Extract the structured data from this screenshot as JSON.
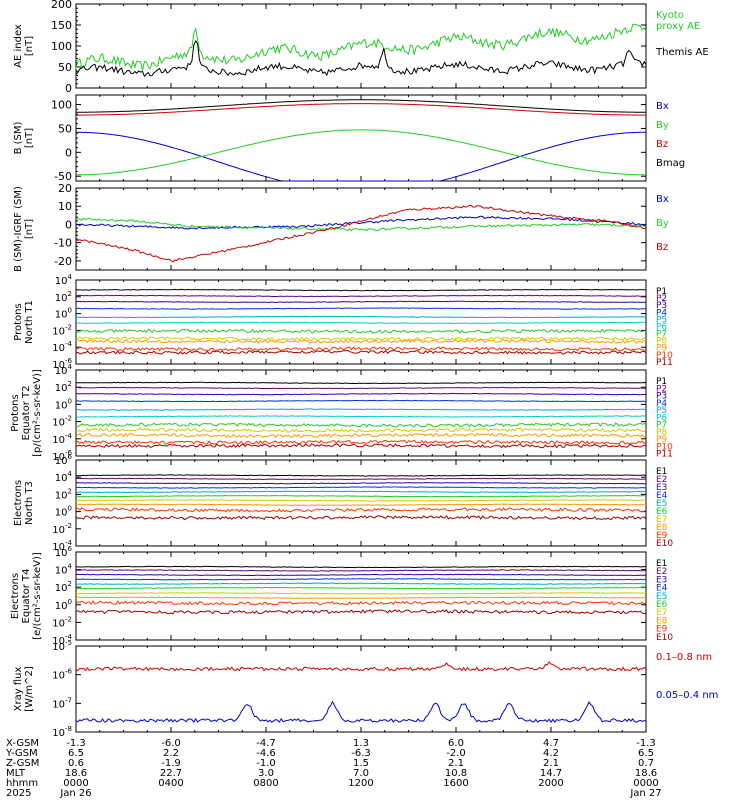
{
  "chart_data": [
    {
      "type": "line",
      "ylabel": [
        "AE index",
        "[nT]"
      ],
      "ylim": [
        0,
        200
      ],
      "yticks": [
        0,
        50,
        100,
        150,
        200
      ],
      "log": false,
      "series": [
        {
          "name": "Kyoto proxy AE",
          "label": [
            "Kyoto",
            "proxy AE"
          ],
          "color": "#22cc22",
          "base": 55,
          "amp": 12,
          "noise": 12,
          "trend": 80,
          "spikes": [
            [
              0.21,
              60
            ]
          ]
        },
        {
          "name": "Themis AE",
          "label": [
            "Themis AE"
          ],
          "color": "#000000",
          "base": 40,
          "amp": 8,
          "noise": 8,
          "trend": 12,
          "spikes": [
            [
              0.21,
              70
            ],
            [
              0.54,
              40
            ],
            [
              0.97,
              30
            ]
          ]
        }
      ]
    },
    {
      "type": "line",
      "ylabel": [
        "B (SM)",
        "[nT]"
      ],
      "ylim": [
        -60,
        120
      ],
      "yticks": [
        -50,
        0,
        50,
        100
      ],
      "log": false,
      "series": [
        {
          "name": "Bx",
          "label": [
            "Bx"
          ],
          "color": "#0000cc",
          "curve": "sin",
          "c0": -20,
          "a": 62,
          "phase": 0.25
        },
        {
          "name": "By",
          "label": [
            "By"
          ],
          "color": "#22cc22",
          "curve": "sin",
          "c0": 0,
          "a": 47,
          "phase": -0.25
        },
        {
          "name": "Bz",
          "label": [
            "Bz"
          ],
          "color": "#cc0000",
          "curve": "sin",
          "c0": 90,
          "a": 12,
          "phase": -0.25
        },
        {
          "name": "Bmag",
          "label": [
            "Bmag"
          ],
          "color": "#000000",
          "curve": "sin",
          "c0": 97,
          "a": 13,
          "phase": -0.25
        }
      ]
    },
    {
      "type": "line",
      "ylabel": [
        "B (SM)-IGRF (SM)",
        "[nT]"
      ],
      "ylim": [
        -25,
        20
      ],
      "yticks": [
        -20,
        -10,
        0,
        10,
        20
      ],
      "log": false,
      "series": [
        {
          "name": "Bx",
          "label": [
            "Bx"
          ],
          "color": "#0000cc",
          "curve": "pts",
          "pts": [
            [
              0,
              0
            ],
            [
              0.2,
              -2
            ],
            [
              0.4,
              -1
            ],
            [
              0.55,
              2
            ],
            [
              0.7,
              4
            ],
            [
              0.85,
              3
            ],
            [
              1,
              0
            ]
          ]
        },
        {
          "name": "By",
          "label": [
            "By"
          ],
          "color": "#22cc22",
          "curve": "pts",
          "pts": [
            [
              0,
              3
            ],
            [
              0.1,
              2
            ],
            [
              0.2,
              -1
            ],
            [
              0.35,
              -2
            ],
            [
              0.5,
              -3
            ],
            [
              0.7,
              -1
            ],
            [
              0.9,
              0
            ],
            [
              1,
              -1
            ]
          ]
        },
        {
          "name": "Bz",
          "label": [
            "Bz"
          ],
          "color": "#cc0000",
          "curve": "pts",
          "pts": [
            [
              0,
              -8
            ],
            [
              0.1,
              -14
            ],
            [
              0.17,
              -20
            ],
            [
              0.3,
              -12
            ],
            [
              0.45,
              -2
            ],
            [
              0.58,
              8
            ],
            [
              0.7,
              10
            ],
            [
              0.85,
              4
            ],
            [
              0.93,
              2
            ],
            [
              1,
              -2
            ]
          ]
        }
      ]
    },
    {
      "type": "line",
      "ylabel": [
        "Protons",
        "North T1"
      ],
      "ylim": [
        -6,
        4
      ],
      "yticks": [
        -6,
        -4,
        -2,
        0,
        2,
        4
      ],
      "log": true,
      "series": [
        {
          "name": "P1",
          "label": [
            "P1"
          ],
          "color": "#000000",
          "level": 2.8
        },
        {
          "name": "P2",
          "label": [
            "P2"
          ],
          "color": "#6a006a",
          "level": 2.1
        },
        {
          "name": "P3",
          "label": [
            "P3"
          ],
          "color": "#3300aa",
          "level": 1.4
        },
        {
          "name": "P4",
          "label": [
            "P4"
          ],
          "color": "#0033dd",
          "level": 0.6
        },
        {
          "name": "P5",
          "label": [
            "P5"
          ],
          "color": "#00aacc",
          "level": -0.4
        },
        {
          "name": "P6",
          "label": [
            "P6"
          ],
          "color": "#00cccc",
          "level": -1.1
        },
        {
          "name": "P7",
          "label": [
            "P7"
          ],
          "color": "#22cc22",
          "level": -2.1
        },
        {
          "name": "P8",
          "label": [
            "P8"
          ],
          "color": "#cccc00",
          "level": -3.0
        },
        {
          "name": "P9",
          "label": [
            "P9"
          ],
          "color": "#ff9900",
          "level": -3.3
        },
        {
          "name": "P10",
          "label": [
            "P10"
          ],
          "color": "#ff3300",
          "level": -4.2
        },
        {
          "name": "P11",
          "label": [
            "P11"
          ],
          "color": "#aa0000",
          "level": -4.6
        }
      ]
    },
    {
      "type": "line",
      "ylabel": [
        "Protons",
        "Equator T2",
        "[p/(cm²-s-sr-keV)]"
      ],
      "ylim": [
        -6,
        4
      ],
      "yticks": [
        -6,
        -4,
        -2,
        0,
        2,
        4
      ],
      "log": true,
      "series": [
        {
          "name": "P1",
          "label": [
            "P1"
          ],
          "color": "#000000",
          "level": 2.5
        },
        {
          "name": "P2",
          "label": [
            "P2"
          ],
          "color": "#6a006a",
          "level": 1.9
        },
        {
          "name": "P3",
          "label": [
            "P3"
          ],
          "color": "#3300aa",
          "level": 1.2
        },
        {
          "name": "P4",
          "label": [
            "P4"
          ],
          "color": "#0033dd",
          "level": 0.4
        },
        {
          "name": "P5",
          "label": [
            "P5"
          ],
          "color": "#00aacc",
          "level": -0.6
        },
        {
          "name": "P6",
          "label": [
            "P6"
          ],
          "color": "#00cccc",
          "level": -1.4
        },
        {
          "name": "P7",
          "label": [
            "P7"
          ],
          "color": "#22cc22",
          "level": -2.4
        },
        {
          "name": "P8",
          "label": [
            "P8"
          ],
          "color": "#cccc00",
          "level": -3.0
        },
        {
          "name": "P9",
          "label": [
            "P9"
          ],
          "color": "#ff9900",
          "level": -3.6
        },
        {
          "name": "P10",
          "label": [
            "P10"
          ],
          "color": "#ff3300",
          "level": -4.4
        },
        {
          "name": "P11",
          "label": [
            "P11"
          ],
          "color": "#aa0000",
          "level": -4.8
        }
      ]
    },
    {
      "type": "line",
      "ylabel": [
        "Electrons",
        "North T3"
      ],
      "ylim": [
        -4,
        6
      ],
      "yticks": [
        -4,
        -2,
        0,
        2,
        4,
        6
      ],
      "log": true,
      "series": [
        {
          "name": "E1",
          "label": [
            "E1"
          ],
          "color": "#000000",
          "level": 4.2
        },
        {
          "name": "E2",
          "label": [
            "E2"
          ],
          "color": "#6a006a",
          "level": 3.8
        },
        {
          "name": "E3",
          "label": [
            "E3"
          ],
          "color": "#3300aa",
          "level": 3.3
        },
        {
          "name": "E4",
          "label": [
            "E4"
          ],
          "color": "#0033dd",
          "level": 2.8
        },
        {
          "name": "E5",
          "label": [
            "E5"
          ],
          "color": "#00aacc",
          "level": 2.3
        },
        {
          "name": "E6",
          "label": [
            "E6"
          ],
          "color": "#22cc22",
          "level": 1.8
        },
        {
          "name": "E7",
          "label": [
            "E7"
          ],
          "color": "#cccc00",
          "level": 1.3
        },
        {
          "name": "E8",
          "label": [
            "E8"
          ],
          "color": "#ff9900",
          "level": 0.8
        },
        {
          "name": "E9",
          "label": [
            "E9"
          ],
          "color": "#ff3300",
          "level": 0.2
        },
        {
          "name": "E10",
          "label": [
            "E10"
          ],
          "color": "#990000",
          "level": -0.7
        }
      ]
    },
    {
      "type": "line",
      "ylabel": [
        "Electrons",
        "Equator T4",
        "[e/(cm²-s-sr-keV)]"
      ],
      "ylim": [
        -4,
        6
      ],
      "yticks": [
        -4,
        -2,
        0,
        2,
        4,
        6
      ],
      "log": true,
      "series": [
        {
          "name": "E1",
          "label": [
            "E1"
          ],
          "color": "#000000",
          "level": 4.3
        },
        {
          "name": "E2",
          "label": [
            "E2"
          ],
          "color": "#6a006a",
          "level": 3.9
        },
        {
          "name": "E3",
          "label": [
            "E3"
          ],
          "color": "#3300aa",
          "level": 3.4
        },
        {
          "name": "E4",
          "label": [
            "E4"
          ],
          "color": "#0033dd",
          "level": 2.9
        },
        {
          "name": "E5",
          "label": [
            "E5"
          ],
          "color": "#00aacc",
          "level": 2.4
        },
        {
          "name": "E6",
          "label": [
            "E6"
          ],
          "color": "#22cc22",
          "level": 1.9
        },
        {
          "name": "E7",
          "label": [
            "E7"
          ],
          "color": "#cccc00",
          "level": 1.3
        },
        {
          "name": "E8",
          "label": [
            "E8"
          ],
          "color": "#ff9900",
          "level": 0.8
        },
        {
          "name": "E9",
          "label": [
            "E9"
          ],
          "color": "#ff3300",
          "level": 0.2
        },
        {
          "name": "E10",
          "label": [
            "E10"
          ],
          "color": "#990000",
          "level": -0.8
        }
      ]
    },
    {
      "type": "line",
      "ylabel": [
        "Xray flux",
        "[W/m^2]"
      ],
      "ylim": [
        -8,
        -5
      ],
      "yticks": [
        -8,
        -7,
        -6,
        -5
      ],
      "log": true,
      "series": [
        {
          "name": "0.1-0.8 nm",
          "label": [
            "0.1–0.8 nm"
          ],
          "color": "#cc0000",
          "level": -5.8
        },
        {
          "name": "0.05-0.4 nm",
          "label": [
            "0.05–0.4 nm"
          ],
          "color": "#0000cc",
          "level": -7.6
        }
      ]
    }
  ],
  "time_axis": {
    "rows": [
      {
        "label": "X-GSM",
        "values": [
          "-1.3",
          "-6.0",
          "-4.7",
          "1.3",
          "6.0",
          "4.7",
          "-1.3"
        ]
      },
      {
        "label": "Y-GSM",
        "values": [
          "6.5",
          "2.2",
          "-4.6",
          "-6.3",
          "-2.0",
          "4.2",
          "6.5"
        ]
      },
      {
        "label": "Z-GSM",
        "values": [
          "0.6",
          "-1.9",
          "-1.0",
          "1.5",
          "2.1",
          "2.1",
          "0.7"
        ]
      },
      {
        "label": "MLT",
        "values": [
          "18.6",
          "22.7",
          "3.0",
          "7.0",
          "10.8",
          "14.7",
          "18.6"
        ]
      },
      {
        "label": "hhmm",
        "values": [
          "0000",
          "0400",
          "0800",
          "1200",
          "1600",
          "2000",
          "0000"
        ]
      },
      {
        "label": "2025",
        "values": [
          "Jan 26",
          "",
          "",
          "",
          "",
          "",
          "Jan 27"
        ]
      }
    ]
  }
}
